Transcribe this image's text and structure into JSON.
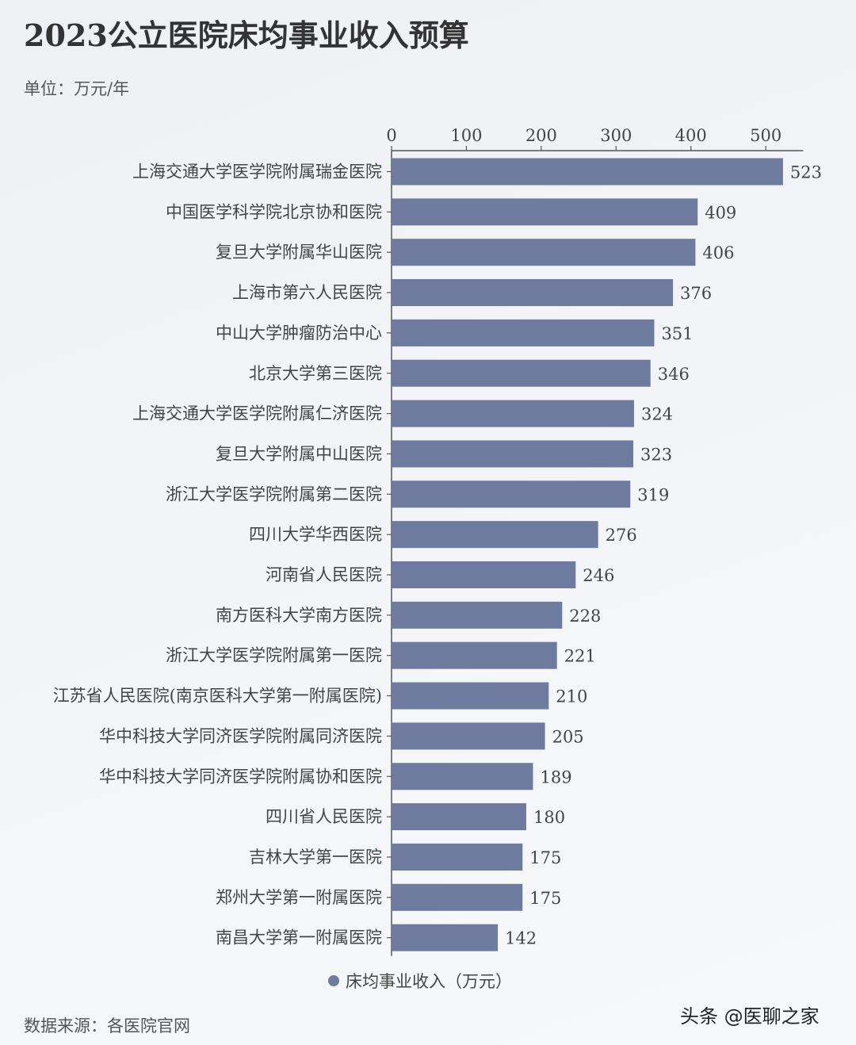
{
  "title": "2023公立医院床均事业收入预算",
  "unit": "单位：万元/年",
  "source": "数据来源：各医院官网",
  "watermark": "头条 @医聊之家",
  "colors": {
    "bar": "#6e7a9e",
    "axis": "#555555"
  },
  "chart_data": {
    "type": "bar",
    "orientation": "horizontal",
    "categories": [
      "上海交通大学医学院附属瑞金医院",
      "中国医学科学院北京协和医院",
      "复旦大学附属华山医院",
      "上海市第六人民医院",
      "中山大学肿瘤防治中心",
      "北京大学第三医院",
      "上海交通大学医学院附属仁济医院",
      "复旦大学附属中山医院",
      "浙江大学医学院附属第二医院",
      "四川大学华西医院",
      "河南省人民医院",
      "南方医科大学南方医院",
      "浙江大学医学院附属第一医院",
      "江苏省人民医院(南京医科大学第一附属医院)",
      "华中科技大学同济医学院附属同济医院",
      "华中科技大学同济医学院附属协和医院",
      "四川省人民医院",
      "吉林大学第一医院",
      "郑州大学第一附属医院",
      "南昌大学第一附属医院"
    ],
    "series": [
      {
        "name": "床均事业收入（万元）",
        "values": [
          523,
          409,
          406,
          376,
          351,
          346,
          324,
          323,
          319,
          276,
          246,
          228,
          221,
          210,
          205,
          189,
          180,
          175,
          175,
          142
        ]
      }
    ],
    "xticks": [
      0,
      100,
      200,
      300,
      400,
      500
    ],
    "xlim": [
      0,
      550
    ],
    "axis_position": "top",
    "grid": false,
    "legend_position": "bottom-center"
  }
}
